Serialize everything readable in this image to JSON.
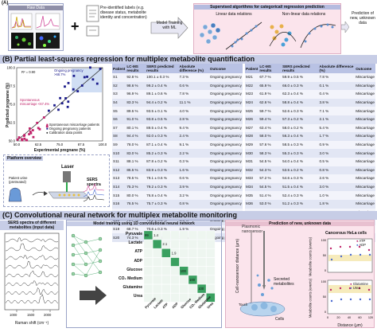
{
  "panel_a": {
    "label": "(A)",
    "raw_data": "Raw Data",
    "plus": "+",
    "labels_text": "Pre-identified labels (e.g. disease status, metabolite identity and concentration)",
    "model_training": "Model Training with ML",
    "supervised": "Supervised algorithms for categorical/ regression prediction",
    "linear": "Linear data relations",
    "nonlinear": "Non-linear data relations",
    "prediction": "Prediction of new, unknown data"
  },
  "panel_b": {
    "label": "(B)",
    "title": "Partial least-squares regression for multiplex metabolite quantification",
    "r2": "R² = 0.90",
    "ongoing_label": "Ongoing pregnancy >68.7%",
    "misc_label": "Spontaneous miscarriage <67.4%",
    "legend": [
      "Spontaneous miscarriage patients",
      "Ongoing pregnancy patients",
      "Calibration data points"
    ],
    "ylabel": "Predicted pregnane (%)",
    "xlabel": "Experimental pregnane (%)",
    "x_ticks": [
      "50.0",
      "62.5",
      "75.0",
      "87.5",
      "100.0"
    ],
    "y_ticks": [
      "100.0",
      "87.5",
      "75.0",
      "62.5",
      "50.0"
    ],
    "platform": "Platform overview",
    "laser": "Laser",
    "patient": "Patient urine (pretreated)",
    "sers": "SERS spectra",
    "headers": [
      "Patient",
      "LC-MS results",
      "SERS predicted results",
      "Absolute difference (%)",
      "Outcome"
    ],
    "rows_left": [
      [
        "S1",
        "92.8 %",
        "100.1 ± 0.3 %",
        "7.3 %",
        "Ongoing pregnancy"
      ],
      [
        "S2",
        "98.6 %",
        "99.2 ± 0.4 %",
        "0.6 %",
        "Ongoing pregnancy"
      ],
      [
        "S3",
        "96.9 %",
        "89.1 ± 0.6 %",
        "7.8 %",
        "Ongoing pregnancy"
      ],
      [
        "S4",
        "83.3 %",
        "94.4 ± 0.2 %",
        "11.1 %",
        "Ongoing pregnancy"
      ],
      [
        "S5",
        "89.5 %",
        "93.5 ± 0.1 %",
        "4.0 %",
        "Ongoing pregnancy"
      ],
      [
        "S6",
        "91.0 %",
        "93.8 ± 0.5 %",
        "2.8 %",
        "Ongoing pregnancy"
      ],
      [
        "S7",
        "80.1 %",
        "89.5 ± 0.4 %",
        "9.4 %",
        "Ongoing pregnancy"
      ],
      [
        "S8",
        "94.4 %",
        "92.0 ± 0.3 %",
        "2.4 %",
        "Ongoing pregnancy"
      ],
      [
        "S9",
        "78.0 %",
        "87.1 ± 0.4 %",
        "9.1 %",
        "Ongoing pregnancy"
      ],
      [
        "S10",
        "83.0 %",
        "85.2 ± 0.3 %",
        "2.2 %",
        "Ongoing pregnancy"
      ],
      [
        "S11",
        "88.1 %",
        "87.8 ± 0.2 %",
        "0.3 %",
        "Ongoing pregnancy"
      ],
      [
        "S12",
        "85.5 %",
        "83.9 ± 0.3 %",
        "1.6 %",
        "Ongoing pregnancy"
      ],
      [
        "S13",
        "78.5 %",
        "79.1 ± 0.6 %",
        "0.6 %",
        "Ongoing pregnancy"
      ],
      [
        "S14",
        "75.3 %",
        "79.2 ± 0.3 %",
        "3.9 %",
        "Ongoing pregnancy"
      ],
      [
        "S15",
        "80.0 %",
        "76.8 ± 0.4 %",
        "3.2 %",
        "Ongoing pregnancy"
      ],
      [
        "S16",
        "76.5 %",
        "75.7 ± 0.3 %",
        "0.8 %",
        "Ongoing pregnancy"
      ],
      [
        "S17",
        "72.0 %",
        "74.3 ± 0.5 %",
        "2.3 %",
        "Ongoing pregnancy"
      ],
      [
        "S18",
        "79.7 %",
        "73.2 ± 0.5 %",
        "6.5 %",
        "Ongoing pregnancy"
      ],
      [
        "S19",
        "68.7 %",
        "70.6 ± 0.3 %",
        "1.9 %",
        "Ongoing pregnancy"
      ],
      [
        "S20",
        "74.3 %",
        "71.3 ± 0.5 %",
        "3.0 %",
        "Ongoing pregnancy"
      ]
    ],
    "rows_right": [
      [
        "M21",
        "67.7 %",
        "59.9 ± 0.5 %",
        "7.8 %",
        "Miscarriage"
      ],
      [
        "M22",
        "65.9 %",
        "66.0 ± 0.3 %",
        "0.1 %",
        "Miscarriage"
      ],
      [
        "M23",
        "61.9 %",
        "62.3 ± 0.4 %",
        "0.4 %",
        "Miscarriage"
      ],
      [
        "M24",
        "62.6 %",
        "58.8 ± 0.4 %",
        "3.8 %",
        "Miscarriage"
      ],
      [
        "M25",
        "59.7 %",
        "52.6 ± 0.3 %",
        "7.1 %",
        "Miscarriage"
      ],
      [
        "M26",
        "59.4 %",
        "57.3 ± 0.2 %",
        "2.1 %",
        "Miscarriage"
      ],
      [
        "M27",
        "63.4 %",
        "58.0 ± 0.2 %",
        "5.4 %",
        "Miscarriage"
      ],
      [
        "M28",
        "58.0 %",
        "56.3 ± 0.4 %",
        "1.7 %",
        "Miscarriage"
      ],
      [
        "M29",
        "57.6 %",
        "58.5 ± 0.3 %",
        "0.9 %",
        "Miscarriage"
      ],
      [
        "M30",
        "58.3 %",
        "55.3 ± 0.3 %",
        "3.0 %",
        "Miscarriage"
      ],
      [
        "M31",
        "54.5 %",
        "54.0 ± 0.4 %",
        "0.5 %",
        "Miscarriage"
      ],
      [
        "M32",
        "54.3 %",
        "53.5 ± 0.2 %",
        "0.8 %",
        "Miscarriage"
      ],
      [
        "M33",
        "57.2 %",
        "54.6 ± 0.3 %",
        "2.6 %",
        "Miscarriage"
      ],
      [
        "M34",
        "54.5 %",
        "51.5 ± 0.4 %",
        "3.0 %",
        "Miscarriage"
      ],
      [
        "M35",
        "51.4 %",
        "52.4 ± 0.3 %",
        "1.0 %",
        "Miscarriage"
      ],
      [
        "M36",
        "53.0 %",
        "51.2 ± 0.3 %",
        "1.8 %",
        "Miscarriage"
      ],
      [
        "M37",
        "50.5 %",
        "50.9 ± 0.3 %",
        "0.4 %",
        "Miscarriage"
      ],
      [
        "M38",
        "55.9 %",
        "50.5 ± 0.2 %",
        "5.4 %",
        "Miscarriage"
      ],
      [
        "M39",
        "53.2 %",
        "50.5 ± 0.2 %",
        "2.7 %",
        "Miscarriage"
      ],
      [
        "M40",
        "55.6 %",
        "50.6 ± 0.1 %",
        "5.0 %",
        "Miscarriage"
      ]
    ]
  },
  "panel_c": {
    "label": "(C)",
    "title": "Convolutional neural network for multiplex metabolite monitoring",
    "spectra_title": "SERS spectra of different metabolites (input data)",
    "training_title": "Model training using 1D convolutional neural network",
    "prediction_title": "Prediction of new, unknown data",
    "spectra_xlabel": "Raman shift (cm⁻¹)",
    "spectra_ticks": [
      "1000",
      "1500",
      "2000"
    ],
    "metabolites": [
      "Pyruvate",
      "Lactate",
      "ATP",
      "ADP",
      "Glucose",
      "CO₂ Medium",
      "Glutamine",
      "Urea"
    ],
    "hm_values": [
      "99",
      "1.4",
      "2.1",
      "1.9",
      "100",
      "100",
      "100"
    ],
    "plasmonic": "Plasmonic nanosensor",
    "secreted": "Secreted metabolites",
    "cells": "Cells",
    "touch": "Touch",
    "distance_ylabel": "Cell-nanosensor distance (μm)",
    "hela_title": "Cancerous HeLa cells",
    "top_legend": [
      "ATP",
      "ADP"
    ],
    "bottom_legend": [
      "Glutamine",
      "Urea"
    ],
    "counts_ylabel": "Metabolite counts (events)",
    "counts_xlabel": "Distance (μm)",
    "counts_xticks": [
      "0",
      "20",
      "40",
      "60",
      "120"
    ],
    "counts_yticks": [
      "100",
      "50",
      "0"
    ]
  }
}
